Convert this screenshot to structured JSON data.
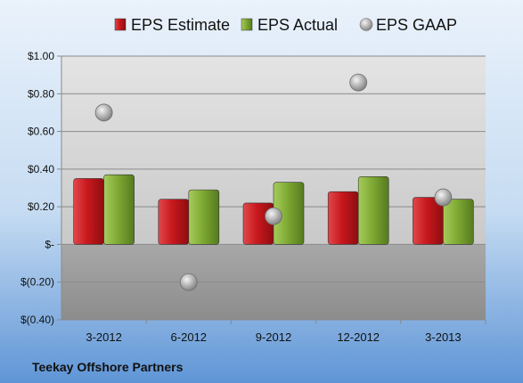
{
  "chart_data": {
    "type": "bar",
    "categories": [
      "3-2012",
      "6-2012",
      "9-2012",
      "12-2012",
      "3-2013"
    ],
    "series": [
      {
        "name": "EPS Estimate",
        "kind": "bar",
        "color": "#c0161b",
        "values": [
          0.35,
          0.24,
          0.22,
          0.28,
          0.25
        ]
      },
      {
        "name": "EPS Actual",
        "kind": "bar",
        "color": "#77a12b",
        "values": [
          0.37,
          0.29,
          0.33,
          0.36,
          0.24
        ]
      },
      {
        "name": "EPS GAAP",
        "kind": "scatter",
        "color": "#a6a6a6",
        "values": [
          0.7,
          -0.2,
          0.15,
          0.86,
          0.25
        ]
      }
    ],
    "ylim": [
      -0.4,
      1.0
    ],
    "yticks": [
      1.0,
      0.8,
      0.6,
      0.4,
      0.2,
      0.0,
      -0.2,
      -0.4
    ],
    "ytick_labels": [
      "$1.00",
      "$0.80",
      "$0.60",
      "$0.40",
      "$0.20",
      "$-",
      "$(0.20)",
      "$(0.40)"
    ],
    "legend_position": "top",
    "grid": true,
    "footer": "Teekay Offshore Partners"
  }
}
